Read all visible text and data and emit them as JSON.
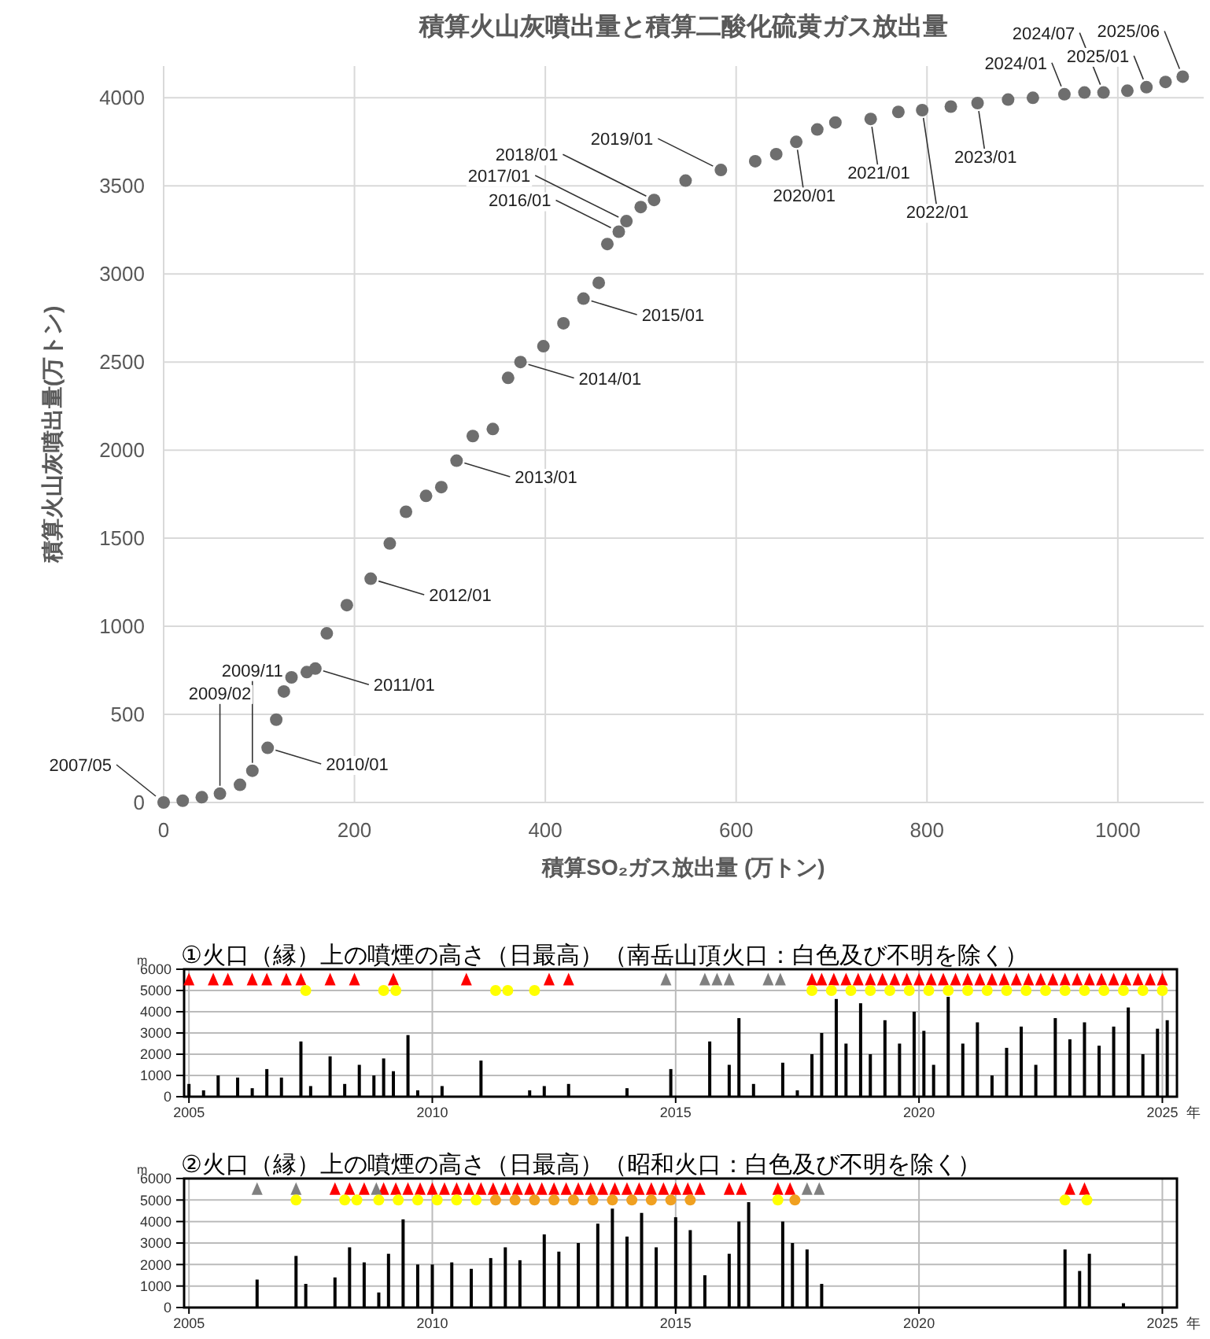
{
  "chart_data": [
    {
      "type": "scatter",
      "title": "積算火山灰噴出量と積算二酸化硫黄ガス放出量",
      "xlabel": "積算SO₂ガス放出量 (万トン)",
      "ylabel": "積算火山灰噴出量(万トン)",
      "xlim": [
        0,
        1090
      ],
      "ylim": [
        0,
        4180
      ],
      "xticks": [
        0,
        200,
        400,
        600,
        800,
        1000
      ],
      "yticks": [
        0,
        500,
        1000,
        1500,
        2000,
        2500,
        3000,
        3500,
        4000
      ],
      "grid": true,
      "marker": "circle",
      "series": [
        {
          "color": "#6e6e6e",
          "x": [
            0,
            20,
            40,
            59,
            80,
            93,
            109,
            118,
            126,
            134,
            150,
            159,
            171,
            192,
            217,
            237,
            254,
            275,
            291,
            307,
            324,
            345,
            361,
            374,
            398,
            419,
            440,
            456,
            465,
            477,
            485,
            500,
            514,
            547,
            584,
            620,
            642,
            663,
            685,
            704,
            741,
            770,
            795,
            825,
            853,
            885,
            911,
            944,
            965,
            985,
            1010,
            1030,
            1050,
            1068
          ],
          "values": [
            0,
            10,
            30,
            50,
            100,
            180,
            310,
            470,
            630,
            710,
            740,
            760,
            960,
            1120,
            1270,
            1470,
            1650,
            1740,
            1790,
            1940,
            2080,
            2120,
            2410,
            2500,
            2590,
            2720,
            2860,
            2950,
            3170,
            3240,
            3300,
            3380,
            3420,
            3530,
            3590,
            3640,
            3680,
            3750,
            3820,
            3860,
            3880,
            3920,
            3930,
            3950,
            3970,
            3990,
            4000,
            4020,
            4030,
            4030,
            4040,
            4060,
            4090,
            4120
          ]
        }
      ],
      "annotations": [
        {
          "text": "2007/05",
          "x": 0,
          "y": 0
        },
        {
          "text": "2009/02",
          "x": 59,
          "y": 50
        },
        {
          "text": "2009/11",
          "x": 93,
          "y": 180
        },
        {
          "text": "2010/01",
          "x": 109,
          "y": 310
        },
        {
          "text": "2011/01",
          "x": 159,
          "y": 760
        },
        {
          "text": "2012/01",
          "x": 217,
          "y": 1270
        },
        {
          "text": "2013/01",
          "x": 307,
          "y": 1940
        },
        {
          "text": "2014/01",
          "x": 374,
          "y": 2500
        },
        {
          "text": "2015/01",
          "x": 440,
          "y": 2860
        },
        {
          "text": "2016/01",
          "x": 477,
          "y": 3240
        },
        {
          "text": "2017/01",
          "x": 485,
          "y": 3300
        },
        {
          "text": "2018/01",
          "x": 514,
          "y": 3420
        },
        {
          "text": "2019/01",
          "x": 584,
          "y": 3590
        },
        {
          "text": "2020/01",
          "x": 663,
          "y": 3750
        },
        {
          "text": "2021/01",
          "x": 741,
          "y": 3880
        },
        {
          "text": "2022/01",
          "x": 795,
          "y": 3930
        },
        {
          "text": "2023/01",
          "x": 853,
          "y": 3970
        },
        {
          "text": "2024/01",
          "x": 944,
          "y": 4020
        },
        {
          "text": "2024/07",
          "x": 985,
          "y": 4030
        },
        {
          "text": "2025/01",
          "x": 1030,
          "y": 4060
        },
        {
          "text": "2025/06",
          "x": 1068,
          "y": 4120
        }
      ]
    },
    {
      "type": "bar",
      "title": "①火口（縁）上の噴煙の高さ（日最高）（南岳山頂火口：白色及び不明を除く）",
      "xlabel": "年",
      "ylabel": "m",
      "xlim": [
        2004.9,
        2025.3
      ],
      "ylim": [
        0,
        6000
      ],
      "xticks": [
        2005,
        2010,
        2015,
        2020,
        2025
      ],
      "yticks": [
        0,
        1000,
        2000,
        3000,
        4000,
        5000,
        6000
      ],
      "grid": true,
      "series": [
        {
          "type": "bar",
          "color": "#000000",
          "x": [
            2005.0,
            2005.3,
            2005.6,
            2006.0,
            2006.3,
            2006.6,
            2006.9,
            2007.3,
            2007.5,
            2007.9,
            2008.2,
            2008.5,
            2008.8,
            2009.0,
            2009.2,
            2009.5,
            2009.7,
            2010.2,
            2011.0,
            2012.0,
            2012.3,
            2012.8,
            2014.0,
            2014.9,
            2015.7,
            2016.1,
            2016.3,
            2016.6,
            2017.2,
            2017.5,
            2017.8,
            2018.0,
            2018.3,
            2018.5,
            2018.8,
            2019.0,
            2019.3,
            2019.6,
            2019.9,
            2020.1,
            2020.3,
            2020.6,
            2020.9,
            2021.2,
            2021.5,
            2021.8,
            2022.1,
            2022.4,
            2022.8,
            2023.1,
            2023.4,
            2023.7,
            2024.0,
            2024.3,
            2024.6,
            2024.9,
            2025.1
          ],
          "values": [
            600,
            300,
            1000,
            900,
            400,
            1300,
            900,
            2600,
            500,
            1900,
            600,
            1500,
            1000,
            1800,
            1200,
            2900,
            300,
            500,
            1700,
            300,
            500,
            600,
            400,
            1300,
            2600,
            1500,
            3700,
            600,
            1600,
            300,
            2000,
            3000,
            4600,
            2500,
            4400,
            2000,
            3600,
            2500,
            4000,
            3100,
            1500,
            4700,
            2500,
            3500,
            1000,
            2300,
            3300,
            1500,
            3700,
            2700,
            3500,
            2400,
            3300,
            4200,
            2000,
            3200,
            3600
          ]
        },
        {
          "type": "scatter",
          "color": "#ff0000",
          "marker": "triangle",
          "x": [
            2005.0,
            2005.5,
            2005.8,
            2006.3,
            2006.6,
            2007.0,
            2007.3,
            2007.9,
            2008.4,
            2009.2,
            2010.7,
            2012.4,
            2012.8,
            2017.8,
            2018.0,
            2018.25,
            2018.5,
            2018.75,
            2019.0,
            2019.25,
            2019.5,
            2019.75,
            2020.0,
            2020.25,
            2020.5,
            2020.75,
            2021.0,
            2021.25,
            2021.5,
            2021.75,
            2022.0,
            2022.25,
            2022.5,
            2022.75,
            2023.0,
            2023.25,
            2023.5,
            2023.75,
            2024.0,
            2024.25,
            2024.5,
            2024.75,
            2025.0
          ],
          "values": [
            5500,
            5500,
            5500,
            5500,
            5500,
            5500,
            5500,
            5500,
            5500,
            5500,
            5500,
            5500,
            5500,
            5500,
            5500,
            5500,
            5500,
            5500,
            5500,
            5500,
            5500,
            5500,
            5500,
            5500,
            5500,
            5500,
            5500,
            5500,
            5500,
            5500,
            5500,
            5500,
            5500,
            5500,
            5500,
            5500,
            5500,
            5500,
            5500,
            5500,
            5500,
            5500,
            5500
          ]
        },
        {
          "type": "scatter",
          "color": "#808080",
          "marker": "triangle",
          "x": [
            2014.8,
            2015.6,
            2015.85,
            2016.1,
            2016.9,
            2017.15
          ],
          "values": [
            5500,
            5500,
            5500,
            5500,
            5500,
            5500
          ]
        },
        {
          "type": "scatter",
          "color": "#ffff00",
          "marker": "circle",
          "x": [
            2007.4,
            2009.0,
            2009.25,
            2011.3,
            2011.55,
            2012.1,
            2017.8,
            2018.2,
            2018.6,
            2019.0,
            2019.4,
            2019.8,
            2020.2,
            2020.6,
            2021.0,
            2021.4,
            2021.8,
            2022.2,
            2022.6,
            2023.0,
            2023.4,
            2023.8,
            2024.2,
            2024.6,
            2025.0
          ],
          "values": [
            5000,
            5000,
            5000,
            5000,
            5000,
            5000,
            5000,
            5000,
            5000,
            5000,
            5000,
            5000,
            5000,
            5000,
            5000,
            5000,
            5000,
            5000,
            5000,
            5000,
            5000,
            5000,
            5000,
            5000,
            5000
          ]
        }
      ]
    },
    {
      "type": "bar",
      "title": "②火口（縁）上の噴煙の高さ（日最高）（昭和火口：白色及び不明を除く）",
      "xlabel": "年",
      "ylabel": "m",
      "xlim": [
        2004.9,
        2025.3
      ],
      "ylim": [
        0,
        6000
      ],
      "xticks": [
        2005,
        2010,
        2015,
        2020,
        2025
      ],
      "yticks": [
        0,
        1000,
        2000,
        3000,
        4000,
        5000,
        6000
      ],
      "grid": true,
      "series": [
        {
          "type": "bar",
          "color": "#000000",
          "x": [
            2006.4,
            2007.2,
            2007.4,
            2008.0,
            2008.3,
            2008.6,
            2008.9,
            2009.1,
            2009.4,
            2009.7,
            2010.0,
            2010.4,
            2010.8,
            2011.2,
            2011.5,
            2011.8,
            2012.3,
            2012.6,
            2013.0,
            2013.4,
            2013.7,
            2014.0,
            2014.3,
            2014.6,
            2015.0,
            2015.3,
            2015.6,
            2016.1,
            2016.3,
            2016.5,
            2017.2,
            2017.4,
            2017.7,
            2018.0,
            2023.0,
            2023.3,
            2023.5,
            2024.2
          ],
          "values": [
            1300,
            2400,
            1100,
            1400,
            2800,
            2100,
            700,
            2500,
            4100,
            2000,
            2000,
            2100,
            1800,
            2300,
            2800,
            2200,
            3400,
            2600,
            3000,
            3900,
            4600,
            3300,
            4400,
            2800,
            4200,
            3600,
            1500,
            2500,
            4000,
            4900,
            4000,
            3000,
            2700,
            1100,
            2700,
            1700,
            2500,
            200
          ]
        },
        {
          "type": "scatter",
          "color": "#ff0000",
          "marker": "triangle",
          "x": [
            2008.0,
            2008.3,
            2008.6,
            2009.0,
            2009.25,
            2009.5,
            2009.75,
            2010.0,
            2010.25,
            2010.5,
            2010.75,
            2011.0,
            2011.25,
            2011.5,
            2011.75,
            2012.0,
            2012.25,
            2012.5,
            2012.75,
            2013.0,
            2013.25,
            2013.5,
            2013.75,
            2014.0,
            2014.25,
            2014.5,
            2014.75,
            2015.0,
            2015.25,
            2015.5,
            2016.1,
            2016.35,
            2017.1,
            2017.35,
            2023.1,
            2023.4
          ],
          "values": [
            5500,
            5500,
            5500,
            5500,
            5500,
            5500,
            5500,
            5500,
            5500,
            5500,
            5500,
            5500,
            5500,
            5500,
            5500,
            5500,
            5500,
            5500,
            5500,
            5500,
            5500,
            5500,
            5500,
            5500,
            5500,
            5500,
            5500,
            5500,
            5500,
            5500,
            5500,
            5500,
            5500,
            5500,
            5500,
            5500
          ]
        },
        {
          "type": "scatter",
          "color": "#808080",
          "marker": "triangle",
          "x": [
            2006.4,
            2007.2,
            2008.85,
            2017.7,
            2017.95
          ],
          "values": [
            5500,
            5500,
            5500,
            5500,
            5500
          ]
        },
        {
          "type": "scatter",
          "color": "#ffff00",
          "marker": "circle",
          "x": [
            2007.2,
            2008.2,
            2008.45,
            2008.9,
            2009.3,
            2009.7,
            2010.1,
            2010.5,
            2010.9,
            2017.1,
            2023.0,
            2023.45
          ],
          "values": [
            5000,
            5000,
            5000,
            5000,
            5000,
            5000,
            5000,
            5000,
            5000,
            5000,
            5000,
            5000
          ]
        },
        {
          "type": "scatter",
          "color": "#f0a020",
          "marker": "circle",
          "x": [
            2011.3,
            2011.7,
            2012.1,
            2012.5,
            2012.9,
            2013.3,
            2013.7,
            2014.1,
            2014.5,
            2014.9,
            2015.3,
            2017.45
          ],
          "values": [
            5000,
            5000,
            5000,
            5000,
            5000,
            5000,
            5000,
            5000,
            5000,
            5000,
            5000,
            5000
          ]
        }
      ]
    }
  ]
}
